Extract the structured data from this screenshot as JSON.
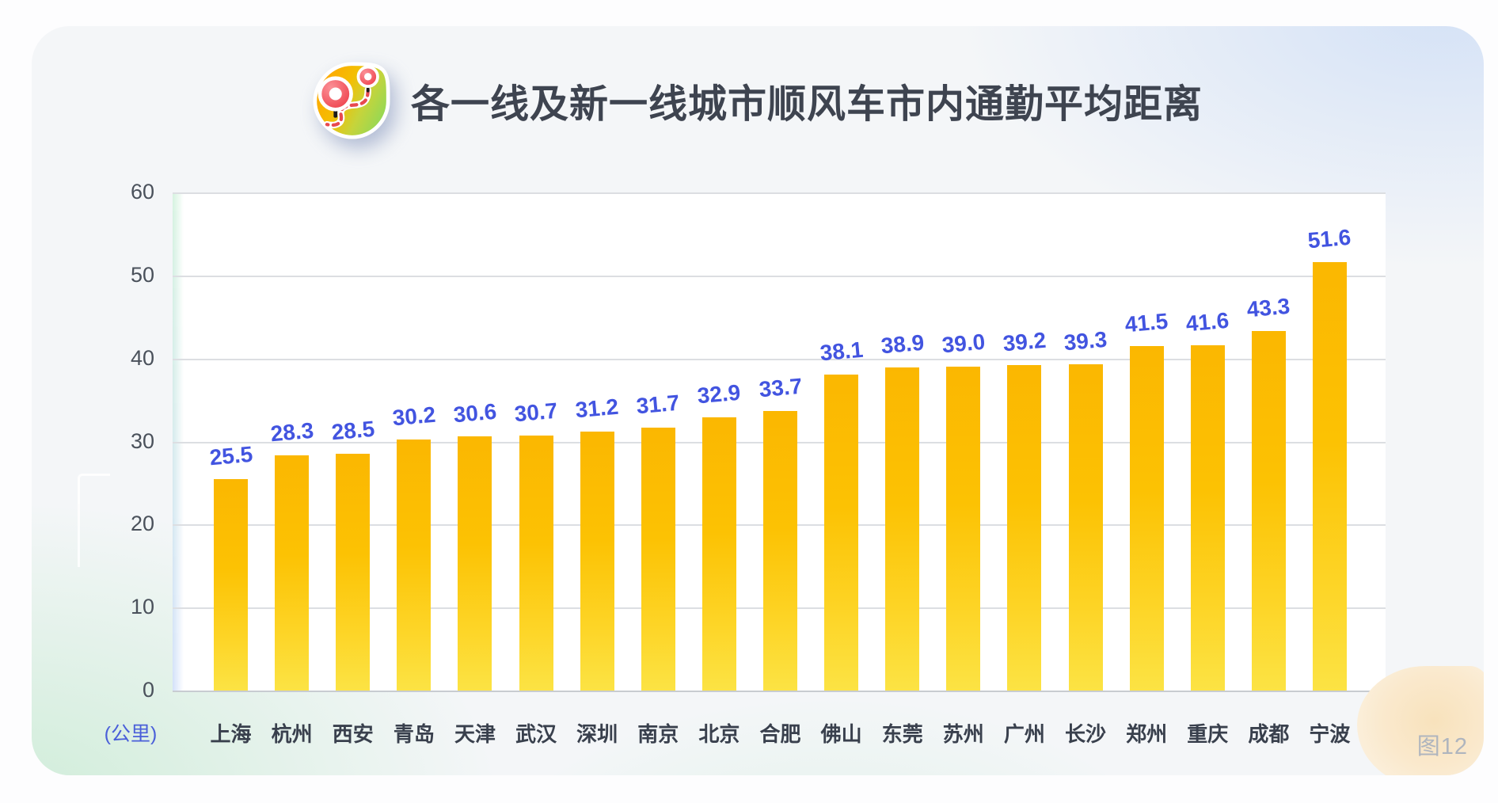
{
  "header": {
    "title": "各一线及新一线城市顺风车市内通勤平均距离",
    "icon": "route-pins-icon"
  },
  "figure_badge": {
    "label": "图12"
  },
  "chart_data": {
    "type": "bar",
    "title": "各一线及新一线城市顺风车市内通勤平均距离",
    "unit_label": "(公里)",
    "categories": [
      "上海",
      "杭州",
      "西安",
      "青岛",
      "天津",
      "武汉",
      "深圳",
      "南京",
      "北京",
      "合肥",
      "佛山",
      "东莞",
      "苏州",
      "广州",
      "长沙",
      "郑州",
      "重庆",
      "成都",
      "宁波"
    ],
    "values": [
      25.5,
      28.3,
      28.5,
      30.2,
      30.6,
      30.7,
      31.2,
      31.7,
      32.9,
      33.7,
      38.1,
      38.9,
      39.0,
      39.2,
      39.3,
      41.5,
      41.6,
      43.3,
      51.6
    ],
    "value_labels": [
      "25.5",
      "28.3",
      "28.5",
      "30.2",
      "30.6",
      "30.7",
      "31.2",
      "31.7",
      "32.9",
      "33.7",
      "38.1",
      "38.9",
      "39.0",
      "39.2",
      "39.3",
      "41.5",
      "41.6",
      "43.3",
      "51.6"
    ],
    "xlabel": "",
    "ylabel": "(公里)",
    "ylim": [
      0,
      60
    ],
    "yticks": [
      0,
      10,
      20,
      30,
      40,
      50,
      60
    ],
    "grid": true,
    "legend_position": "none",
    "colors": {
      "bar_top": "#FBB701",
      "bar_bottom": "#FCE344",
      "value_label": "#4254E0",
      "category_label": "#39404D",
      "tick_label": "#4A515B",
      "title": "#3E4450",
      "gridline": "#DCDEE2",
      "unit_label": "#4A5FD9",
      "panel_background": "#FFFFFF"
    }
  }
}
